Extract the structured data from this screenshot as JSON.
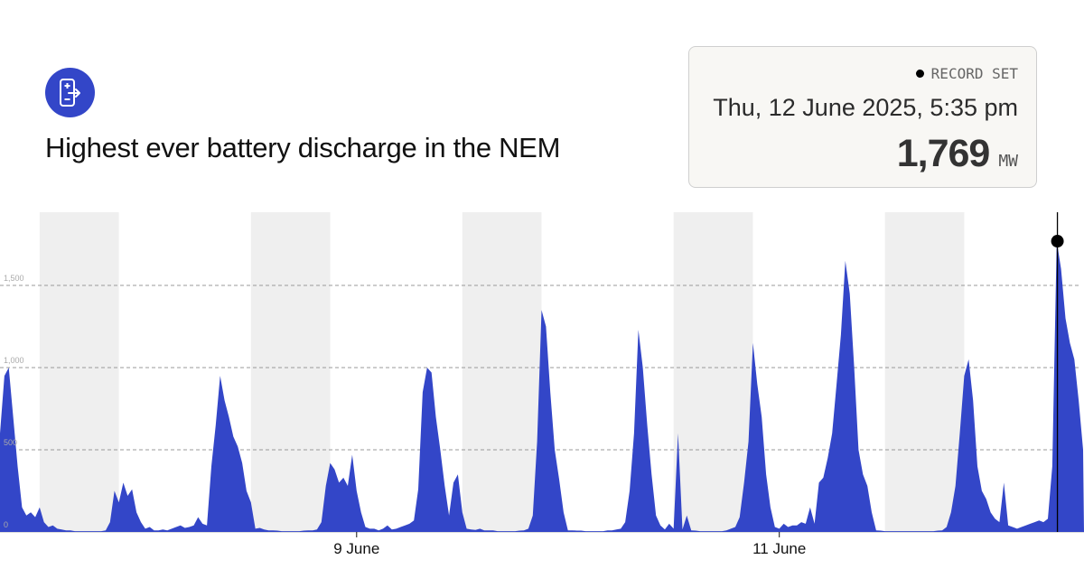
{
  "header": {
    "icon": "battery-discharge-icon",
    "title": "Highest ever battery discharge in the NEM"
  },
  "record_card": {
    "badge": "RECORD SET",
    "datetime": "Thu, 12 June 2025, 5:35 pm",
    "value": "1,769",
    "unit": "MW"
  },
  "colors": {
    "accent": "#3346c8",
    "area": "#3346c8",
    "night_shading": "#efefef",
    "card_bg": "#f8f7f4"
  },
  "chart_data": {
    "type": "area",
    "title": "",
    "xlabel": "",
    "ylabel": "",
    "x_start": "2025-06-07T07:30Z",
    "x_interval_minutes": 30,
    "ylim": [
      0,
      1950
    ],
    "y_ticks": [
      {
        "value": 0,
        "label": "0"
      },
      {
        "value": 500,
        "label": "500"
      },
      {
        "value": 1000,
        "label": "1,000"
      },
      {
        "value": 1500,
        "label": "1,500"
      }
    ],
    "x_ticks": [
      {
        "time": "2025-06-09T00:00Z",
        "label": "9 June"
      },
      {
        "time": "2025-06-11T00:00Z",
        "label": "11 June"
      }
    ],
    "grid": "horizontal dashed",
    "night_periods": [
      [
        "2025-06-07T12:00Z",
        "2025-06-07T21:00Z"
      ],
      [
        "2025-06-08T12:00Z",
        "2025-06-08T21:00Z"
      ],
      [
        "2025-06-09T12:00Z",
        "2025-06-09T21:00Z"
      ],
      [
        "2025-06-10T12:00Z",
        "2025-06-10T21:00Z"
      ],
      [
        "2025-06-11T12:00Z",
        "2025-06-11T21:00Z"
      ]
    ],
    "record": {
      "time": "2025-06-12T07:35Z",
      "value": 1769
    },
    "values": [
      600,
      950,
      1000,
      700,
      400,
      150,
      100,
      120,
      90,
      150,
      60,
      30,
      40,
      20,
      15,
      10,
      10,
      5,
      5,
      5,
      5,
      5,
      5,
      5,
      10,
      60,
      250,
      180,
      300,
      220,
      260,
      120,
      60,
      20,
      30,
      10,
      10,
      15,
      10,
      20,
      30,
      40,
      25,
      30,
      40,
      90,
      50,
      40,
      400,
      650,
      950,
      800,
      700,
      580,
      520,
      420,
      250,
      180,
      20,
      25,
      15,
      10,
      10,
      8,
      5,
      5,
      5,
      5,
      5,
      8,
      10,
      10,
      15,
      60,
      280,
      420,
      380,
      300,
      330,
      280,
      470,
      250,
      120,
      30,
      20,
      20,
      10,
      20,
      40,
      15,
      20,
      30,
      40,
      50,
      70,
      260,
      850,
      1000,
      970,
      700,
      500,
      280,
      100,
      300,
      350,
      120,
      20,
      15,
      12,
      20,
      10,
      10,
      10,
      5,
      5,
      5,
      5,
      5,
      8,
      10,
      20,
      100,
      550,
      1350,
      1250,
      850,
      500,
      320,
      120,
      10,
      10,
      8,
      8,
      5,
      5,
      5,
      5,
      5,
      10,
      10,
      15,
      20,
      60,
      250,
      600,
      1230,
      1000,
      650,
      350,
      100,
      40,
      15,
      50,
      20,
      600,
      15,
      100,
      10,
      8,
      5,
      5,
      5,
      5,
      5,
      5,
      10,
      20,
      30,
      90,
      300,
      550,
      1150,
      900,
      700,
      350,
      150,
      30,
      20,
      50,
      30,
      40,
      40,
      60,
      50,
      150,
      50,
      300,
      330,
      450,
      600,
      900,
      1200,
      1650,
      1450,
      1000,
      500,
      350,
      280,
      120,
      10,
      8,
      5,
      5,
      5,
      5,
      5,
      5,
      5,
      5,
      5,
      5,
      5,
      5,
      8,
      10,
      30,
      120,
      280,
      600,
      950,
      1050,
      800,
      400,
      250,
      200,
      120,
      80,
      60,
      300,
      40,
      30,
      20,
      30,
      40,
      50,
      60,
      70,
      60,
      80,
      400,
      1769,
      1600,
      1300,
      1150,
      1050,
      800,
      500
    ]
  }
}
